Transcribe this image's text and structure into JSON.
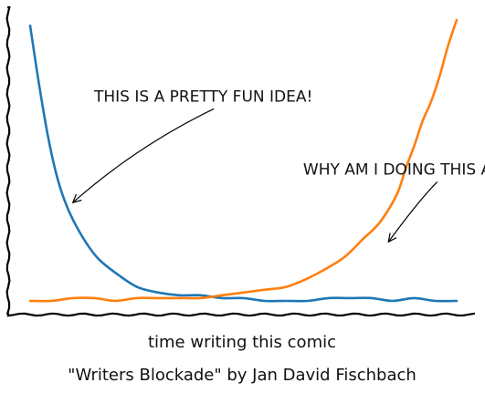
{
  "chart_data": {
    "type": "line",
    "style": "xkcd",
    "title": "",
    "xlabel": "time writing this comic",
    "ylabel": "",
    "caption": "\"Writers Blockade\" by Jan David Fischbach",
    "grid": false,
    "xlim": [
      0,
      100
    ],
    "ylim": [
      0,
      100
    ],
    "series": [
      {
        "color": "#1f77b4",
        "x": [
          0,
          2,
          4,
          6,
          8,
          10,
          13,
          16,
          20,
          25,
          30,
          35,
          40,
          45,
          50,
          55,
          60,
          65,
          70,
          75,
          80,
          85,
          90,
          95,
          100
        ],
        "y": [
          98,
          78,
          60,
          46,
          36,
          29,
          21,
          15,
          10,
          5,
          3,
          2,
          2,
          1,
          1,
          0,
          0,
          0,
          1,
          1,
          1,
          0,
          1,
          0,
          0
        ]
      },
      {
        "color": "#ff7f0e",
        "x": [
          0,
          5,
          10,
          15,
          20,
          25,
          30,
          35,
          40,
          45,
          50,
          55,
          60,
          65,
          70,
          74,
          78,
          82,
          86,
          88,
          90,
          92,
          94,
          96,
          98,
          100
        ],
        "y": [
          0,
          0,
          1,
          1,
          0,
          1,
          1,
          1,
          1,
          2,
          3,
          4,
          5,
          8,
          12,
          16,
          22,
          28,
          38,
          47,
          55,
          64,
          71,
          80,
          91,
          100
        ]
      }
    ],
    "annotations": [
      {
        "text": "THIS IS A PRETTY FUN IDEA!",
        "point": [
          10,
          35
        ],
        "text_at": [
          15,
          71
        ]
      },
      {
        "text": "WHY AM I DOING THIS AGAIN?",
        "point": [
          84,
          21
        ],
        "text_at": [
          64,
          45
        ]
      }
    ]
  }
}
